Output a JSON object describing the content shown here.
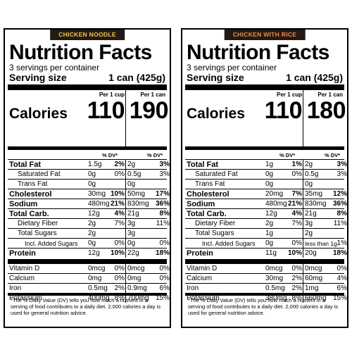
{
  "panels": [
    {
      "flavor": "CHICKEN NOODLE",
      "title": "Nutrition Facts",
      "servings": "3 servings per container",
      "serving_label": "Serving size",
      "serving_value": "1 can (425g)",
      "per_cup": "Per 1 cup",
      "per_can": "Per 1 can",
      "calories_label": "Calories",
      "calories_cup": "110",
      "calories_can": "190",
      "dv_header": "% DV*",
      "nutrients": [
        {
          "label": "Total Fat",
          "a1": "1.5g",
          "p1": "2%",
          "a2": "2g",
          "p2": "3%"
        },
        {
          "label": "Saturated Fat",
          "a1": "0g",
          "p1": "0%",
          "a2": "0.5g",
          "p2": "3%"
        },
        {
          "label": "Trans Fat",
          "a1": "0g",
          "p1": "",
          "a2": "0g",
          "p2": ""
        },
        {
          "label": "Cholesterol",
          "a1": "30mg",
          "p1": "10%",
          "a2": "50mg",
          "p2": "17%"
        },
        {
          "label": "Sodium",
          "a1": "480mg",
          "p1": "21%",
          "a2": "830mg",
          "p2": "36%"
        },
        {
          "label": "Total Carb.",
          "a1": "12g",
          "p1": "4%",
          "a2": "21g",
          "p2": "8%"
        },
        {
          "label": "Dietary Fiber",
          "a1": "2g",
          "p1": "7%",
          "a2": "3g",
          "p2": "11%"
        },
        {
          "label": "Total Sugars",
          "a1": "2g",
          "p1": "",
          "a2": "3g",
          "p2": ""
        },
        {
          "label": "Incl. Added Sugars",
          "a1": "0g",
          "p1": "0%",
          "a2": "0g",
          "p2": "0%"
        },
        {
          "label": "Protein",
          "a1": "12g",
          "p1": "10%",
          "a2": "22g",
          "p2": "18%"
        }
      ],
      "vitamins": [
        {
          "label": "Vitamin D",
          "a1": "0mcg",
          "p1": "0%",
          "a2": "0mcg",
          "p2": "0%"
        },
        {
          "label": "Calcium",
          "a1": "0mg",
          "p1": "0%",
          "a2": "0mg",
          "p2": "0%"
        },
        {
          "label": "Iron",
          "a1": "0.5mg",
          "p1": "2%",
          "a2": "0.9mg",
          "p2": "6%"
        },
        {
          "label": "Potassium",
          "a1": "400mg",
          "p1": "8%",
          "a2": "700mg",
          "p2": "15%"
        }
      ],
      "footnote": "*The % Daily Value (DV) tells you how much a nutrient in a serving of food contributes to a daily diet. 2,000 calories a day is used for general nutrition advice."
    },
    {
      "flavor": "CHICKEN WITH RICE",
      "title": "Nutrition Facts",
      "servings": "3 servings per container",
      "serving_label": "Serving size",
      "serving_value": "1 can (425g)",
      "per_cup": "Per 1 cup",
      "per_can": "Per 1 can",
      "calories_label": "Calories",
      "calories_cup": "110",
      "calories_can": "180",
      "dv_header": "% DV*",
      "nutrients": [
        {
          "label": "Total Fat",
          "a1": "1g",
          "p1": "1%",
          "a2": "2g",
          "p2": "3%"
        },
        {
          "label": "Saturated Fat",
          "a1": "0g",
          "p1": "0%",
          "a2": "0.5g",
          "p2": "3%"
        },
        {
          "label": "Trans Fat",
          "a1": "0g",
          "p1": "",
          "a2": "0g",
          "p2": ""
        },
        {
          "label": "Cholesterol",
          "a1": "20mg",
          "p1": "7%",
          "a2": "35mg",
          "p2": "12%"
        },
        {
          "label": "Sodium",
          "a1": "480mg",
          "p1": "21%",
          "a2": "830mg",
          "p2": "36%"
        },
        {
          "label": "Total Carb.",
          "a1": "12g",
          "p1": "4%",
          "a2": "21g",
          "p2": "8%"
        },
        {
          "label": "Dietary Fiber",
          "a1": "2g",
          "p1": "7%",
          "a2": "3g",
          "p2": "11%"
        },
        {
          "label": "Total Sugars",
          "a1": "1g",
          "p1": "",
          "a2": "2g",
          "p2": ""
        },
        {
          "label": "Incl. Added Sugars",
          "a1": "0g",
          "p1": "0%",
          "a2": "less than 1g",
          "p2": "1%"
        },
        {
          "label": "Protein",
          "a1": "11g",
          "p1": "10%",
          "a2": "20g",
          "p2": "18%"
        }
      ],
      "vitamins": [
        {
          "label": "Vitamin D",
          "a1": "0mcg",
          "p1": "0%",
          "a2": "0mcg",
          "p2": "0%"
        },
        {
          "label": "Calcium",
          "a1": "30mg",
          "p1": "2%",
          "a2": "60mg",
          "p2": "4%"
        },
        {
          "label": "Iron",
          "a1": "0.5mg",
          "p1": "2%",
          "a2": "1mg",
          "p2": "6%"
        },
        {
          "label": "Potassium",
          "a1": "380mg",
          "p1": "8%",
          "a2": "660mg",
          "p2": "15%"
        }
      ],
      "footnote": "*The % Daily Value (DV) tells you how much a nutrient in a serving of food contributes to a daily diet. 2,000 calories a day is used for general nutrition advice."
    }
  ]
}
